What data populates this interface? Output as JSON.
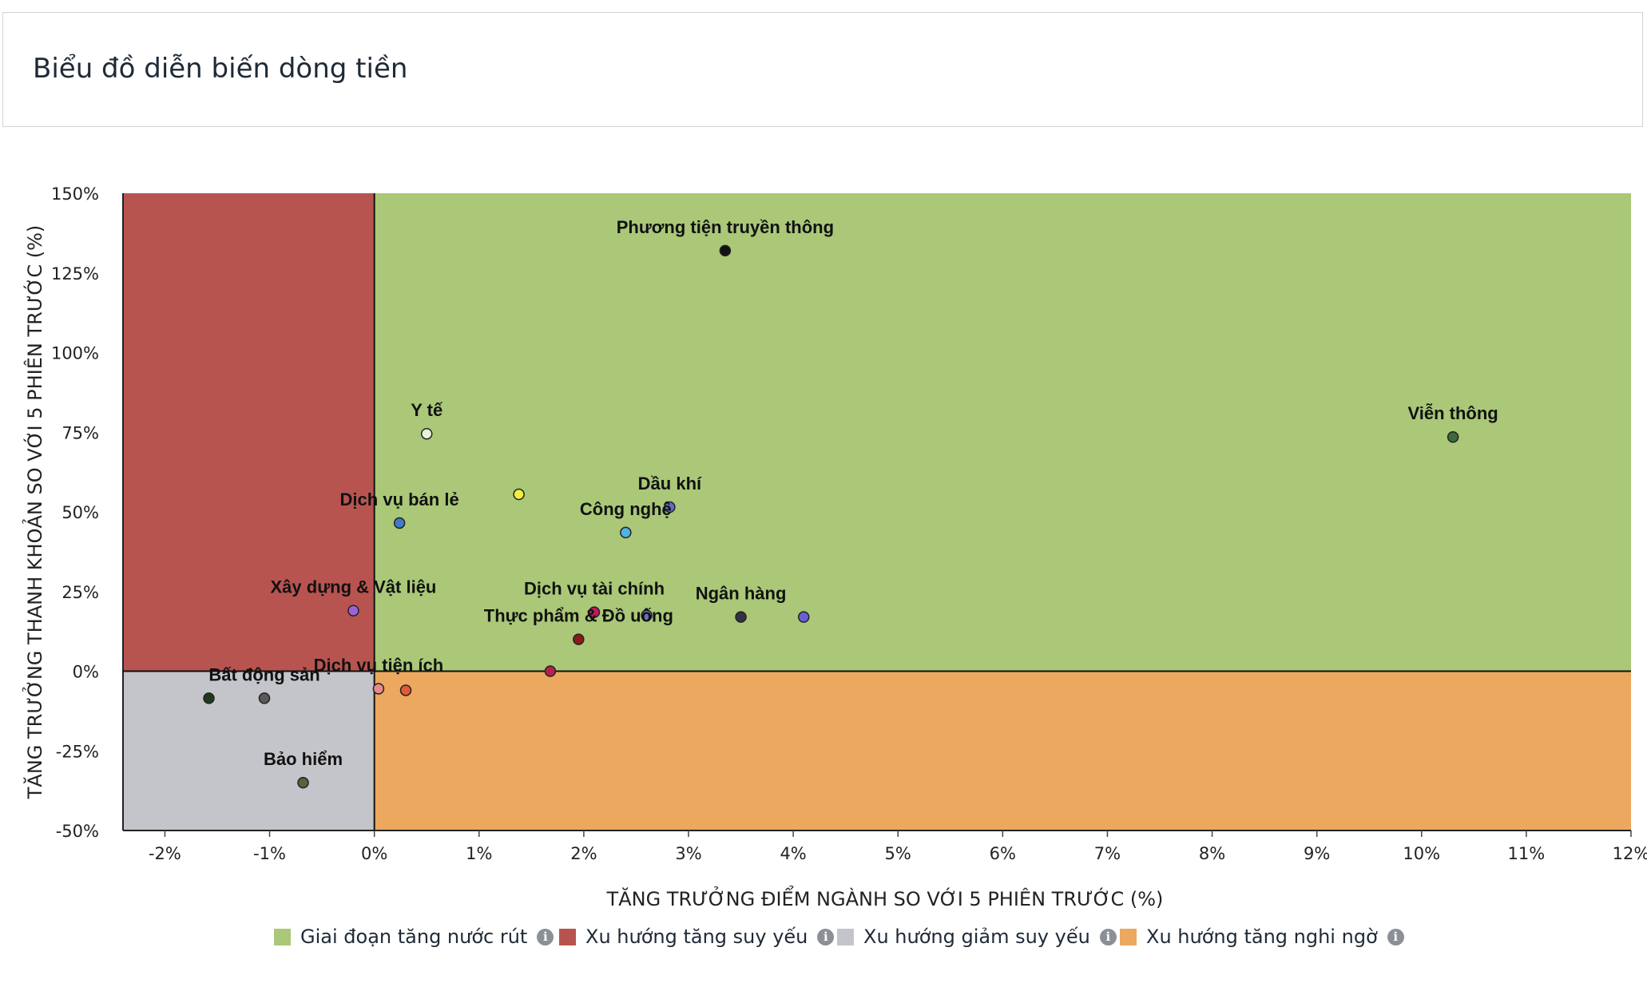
{
  "header": {
    "title": "Biểu đồ diễn biến dòng tiền"
  },
  "chart_data": {
    "type": "scatter",
    "xlabel": "TĂNG TRƯỞNG ĐIỂM NGÀNH SO VỚI 5 PHIÊN TRƯỚC (%)",
    "ylabel": "TĂNG TRƯỞNG THANH KHOẢN SO VỚI 5 PHIÊN TRƯỚC (%)",
    "xlim": [
      -2.4,
      12
    ],
    "ylim": [
      -50,
      150
    ],
    "x_ticks": [
      -2,
      -1,
      0,
      1,
      2,
      3,
      4,
      5,
      6,
      7,
      8,
      9,
      10,
      11,
      12
    ],
    "y_ticks": [
      -50,
      -25,
      0,
      25,
      50,
      75,
      100,
      125,
      150
    ],
    "x_tick_labels": [
      "-2%",
      "-1%",
      "0%",
      "1%",
      "2%",
      "3%",
      "4%",
      "5%",
      "6%",
      "7%",
      "8%",
      "9%",
      "10%",
      "11%",
      "12%"
    ],
    "y_tick_labels": [
      "-50%",
      "-25%",
      "0%",
      "25%",
      "50%",
      "75%",
      "100%",
      "125%",
      "150%"
    ],
    "quadrants": [
      {
        "name": "Giai đoạn tăng nước rút",
        "color": "#aac878",
        "region": "x>=0,y>=0"
      },
      {
        "name": "Xu hướng tăng suy yếu",
        "color": "#b85450",
        "region": "x<0,y>=0"
      },
      {
        "name": "Xu hướng giảm suy yếu",
        "color": "#c4c5ca",
        "region": "x<0,y<0"
      },
      {
        "name": "Xu hướng tăng nghi ngờ",
        "color": "#eca85e",
        "region": "x>=0,y<0"
      }
    ],
    "points": [
      {
        "label": "Phương tiện truyền thông",
        "x": 3.35,
        "y": 132,
        "color": "#111111"
      },
      {
        "label": "Viễn thông",
        "x": 10.3,
        "y": 73.5,
        "color": "#3e6b3e"
      },
      {
        "label": "Y tế",
        "x": 0.5,
        "y": 74.5,
        "color": "#e6f2dc"
      },
      {
        "label": "",
        "x": 1.38,
        "y": 55.5,
        "color": "#f2ef3c"
      },
      {
        "label": "Dầu khí",
        "x": 2.82,
        "y": 51.5,
        "color": "#5b6fc4"
      },
      {
        "label": "Dịch vụ bán lẻ",
        "x": 0.24,
        "y": 46.5,
        "color": "#3f7cc4"
      },
      {
        "label": "Công nghệ",
        "x": 2.4,
        "y": 43.5,
        "color": "#52b2e0"
      },
      {
        "label": "Xây dựng & Vật liệu",
        "x": -0.2,
        "y": 19,
        "color": "#9b63d9"
      },
      {
        "label": "Dịch vụ tài chính",
        "x": 2.1,
        "y": 18.5,
        "color": "#c2185b"
      },
      {
        "label": "",
        "x": 2.6,
        "y": 17.5,
        "color": "#6a6fc0"
      },
      {
        "label": "Ngân hàng",
        "x": 3.5,
        "y": 17,
        "color": "#333344"
      },
      {
        "label": "",
        "x": 4.1,
        "y": 17,
        "color": "#6a5ed6"
      },
      {
        "label": "Thực phẩm & Đồ uống",
        "x": 1.95,
        "y": 10,
        "color": "#8b1a1a"
      },
      {
        "label": "",
        "x": 1.68,
        "y": 0,
        "color": "#b3214a"
      },
      {
        "label": "Dịch vụ tiện ích",
        "x": 0.04,
        "y": -5.5,
        "color": "#e88a8a"
      },
      {
        "label": "",
        "x": 0.3,
        "y": -6,
        "color": "#e05a3a"
      },
      {
        "label": "Bất động sản",
        "x": -1.05,
        "y": -8.5,
        "color": "#5a5a5a"
      },
      {
        "label": "",
        "x": -1.58,
        "y": -8.5,
        "color": "#1e3a1e"
      },
      {
        "label": "Bảo hiểm",
        "x": -0.68,
        "y": -35,
        "color": "#5a6040"
      }
    ]
  },
  "legend": {
    "items": [
      {
        "label": "Giai đoạn tăng nước rút",
        "color": "#aac878",
        "icon": "info-icon"
      },
      {
        "label": "Xu hướng tăng suy yếu",
        "color": "#b85450",
        "icon": "info-icon"
      },
      {
        "label": "Xu hướng giảm suy yếu",
        "color": "#c4c5ca",
        "icon": "info-icon"
      },
      {
        "label": "Xu hướng tăng nghi ngờ",
        "color": "#eca85e",
        "icon": "info-icon"
      }
    ],
    "info_glyph": "i"
  }
}
